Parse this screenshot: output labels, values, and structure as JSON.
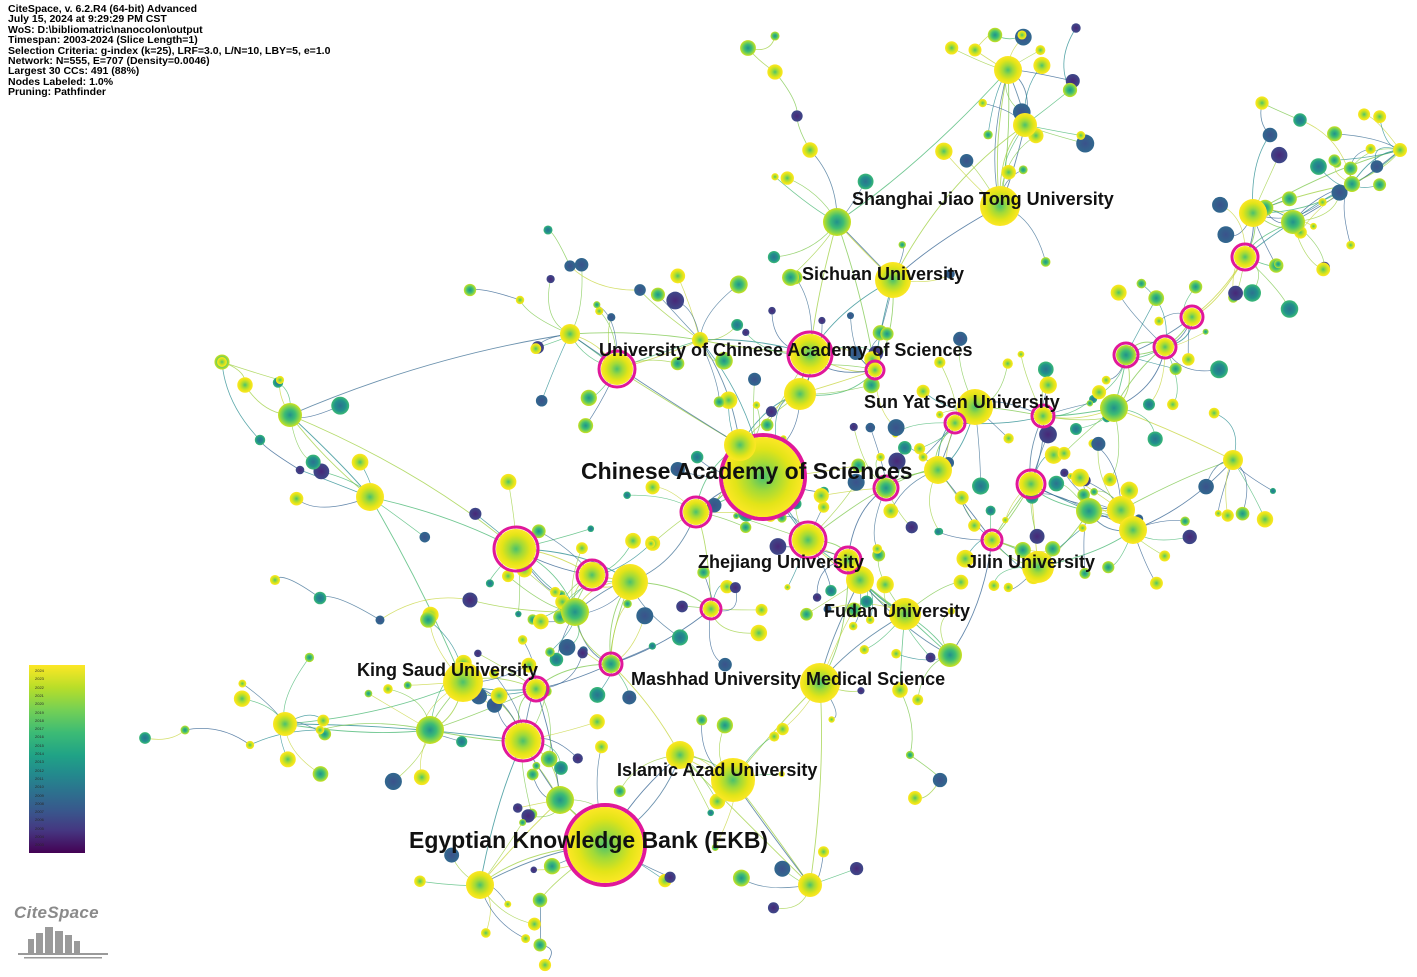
{
  "meta_lines": [
    "CiteSpace, v. 6.2.R4 (64-bit) Advanced",
    "July 15, 2024 at 9:29:29 PM CST",
    "WoS: D:\\bibliomatric\\nanocolon\\output",
    "Timespan: 2003-2024 (Slice Length=1)",
    "Selection Criteria: g-index (k=25), LRF=3.0, L/N=10, LBY=5, e=1.0",
    "Network: N=555, E=707 (Density=0.0046)",
    "Largest 30 CCs: 491 (88%)",
    "Nodes Labeled: 1.0%",
    "Pruning: Pathfinder"
  ],
  "labels": {
    "cas": "Chinese Academy of Sciences",
    "ekb": "Egyptian Knowledge Bank (EKB)",
    "sjtu": "Shanghai Jiao Tong University",
    "sichuan": "Sichuan University",
    "ucas": "University of Chinese Academy of Sciences",
    "sysu": "Sun Yat Sen University",
    "zju": "Zhejiang University",
    "jilin": "Jilin University",
    "fudan": "Fudan University",
    "ksu": "King Saud University",
    "mashhad": "Mashhad University Medical Science",
    "azad": "Islamic Azad University"
  },
  "legend": {
    "colors": [
      "#fde725",
      "#b8de29",
      "#74d055",
      "#3cbb75",
      "#20a386",
      "#238a8d",
      "#2d708e",
      "#39568c",
      "#453781",
      "#440154"
    ],
    "years": [
      "2024",
      "2023",
      "2022",
      "2021",
      "2020",
      "2019",
      "2018",
      "2017",
      "2016",
      "2015",
      "2014",
      "2013",
      "2012",
      "2011",
      "2010",
      "2009",
      "2008",
      "2007",
      "2006",
      "2005",
      "2004",
      "2003"
    ]
  },
  "brand": "CiteSpace",
  "burst_ring_color": "#e0189a"
}
